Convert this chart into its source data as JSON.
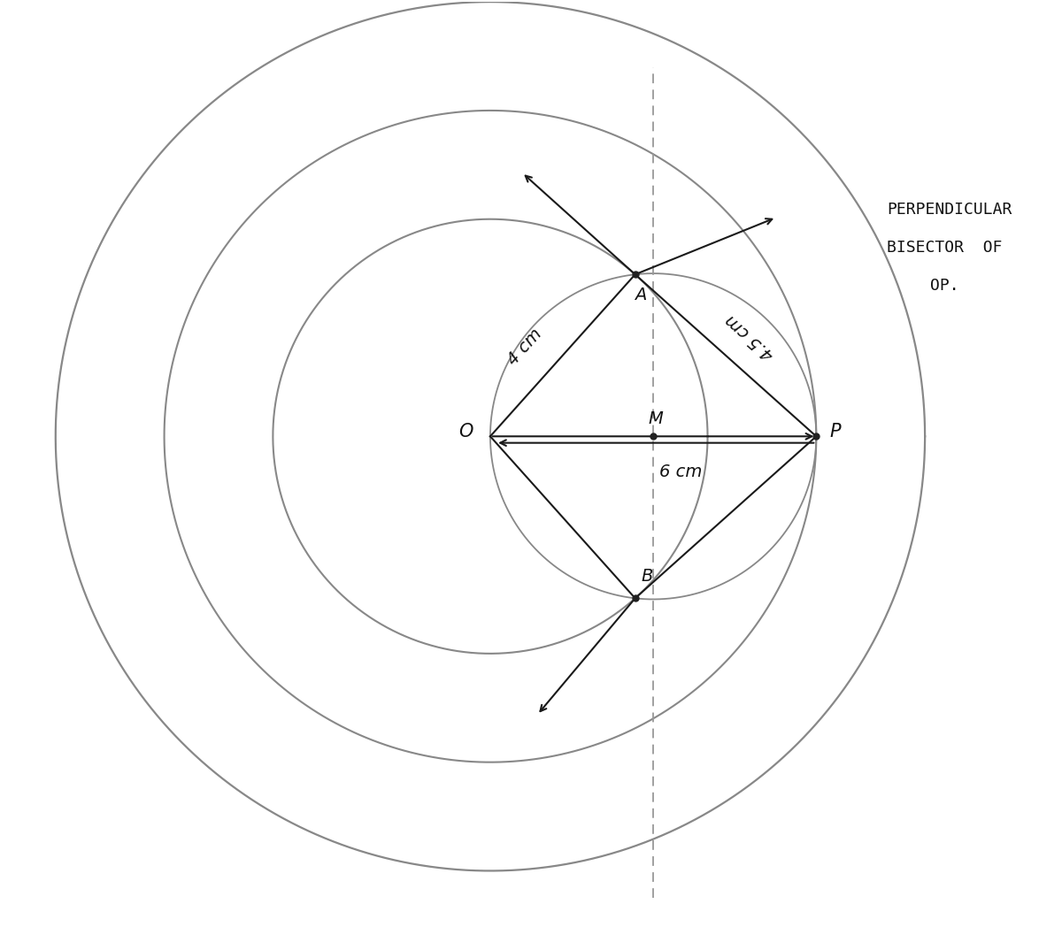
{
  "bg_color": "#ffffff",
  "circle_color": "#888888",
  "line_color": "#1a1a1a",
  "dashed_color": "#999999",
  "dot_color": "#222222",
  "text_color": "#111111",
  "O": [
    0.0,
    0.0
  ],
  "P": [
    6.0,
    0.0
  ],
  "M": [
    3.0,
    0.0
  ],
  "r_inner": 4.0,
  "r_outer": 6.0,
  "r_mid": 3.0,
  "r_outermost": 8.0,
  "label_OA": "4 cm",
  "label_PA": "4.5 cm",
  "label_OP": "6 cm",
  "label_perp_line1": "PERPENDICULAR",
  "label_perp_line2": "BISECTOR  OF",
  "label_perp_line3": "OP.",
  "figsize": [
    12.0,
    10.48
  ],
  "dpi": 100,
  "xlim": [
    -9.0,
    10.5
  ],
  "ylim": [
    -9.0,
    8.0
  ]
}
